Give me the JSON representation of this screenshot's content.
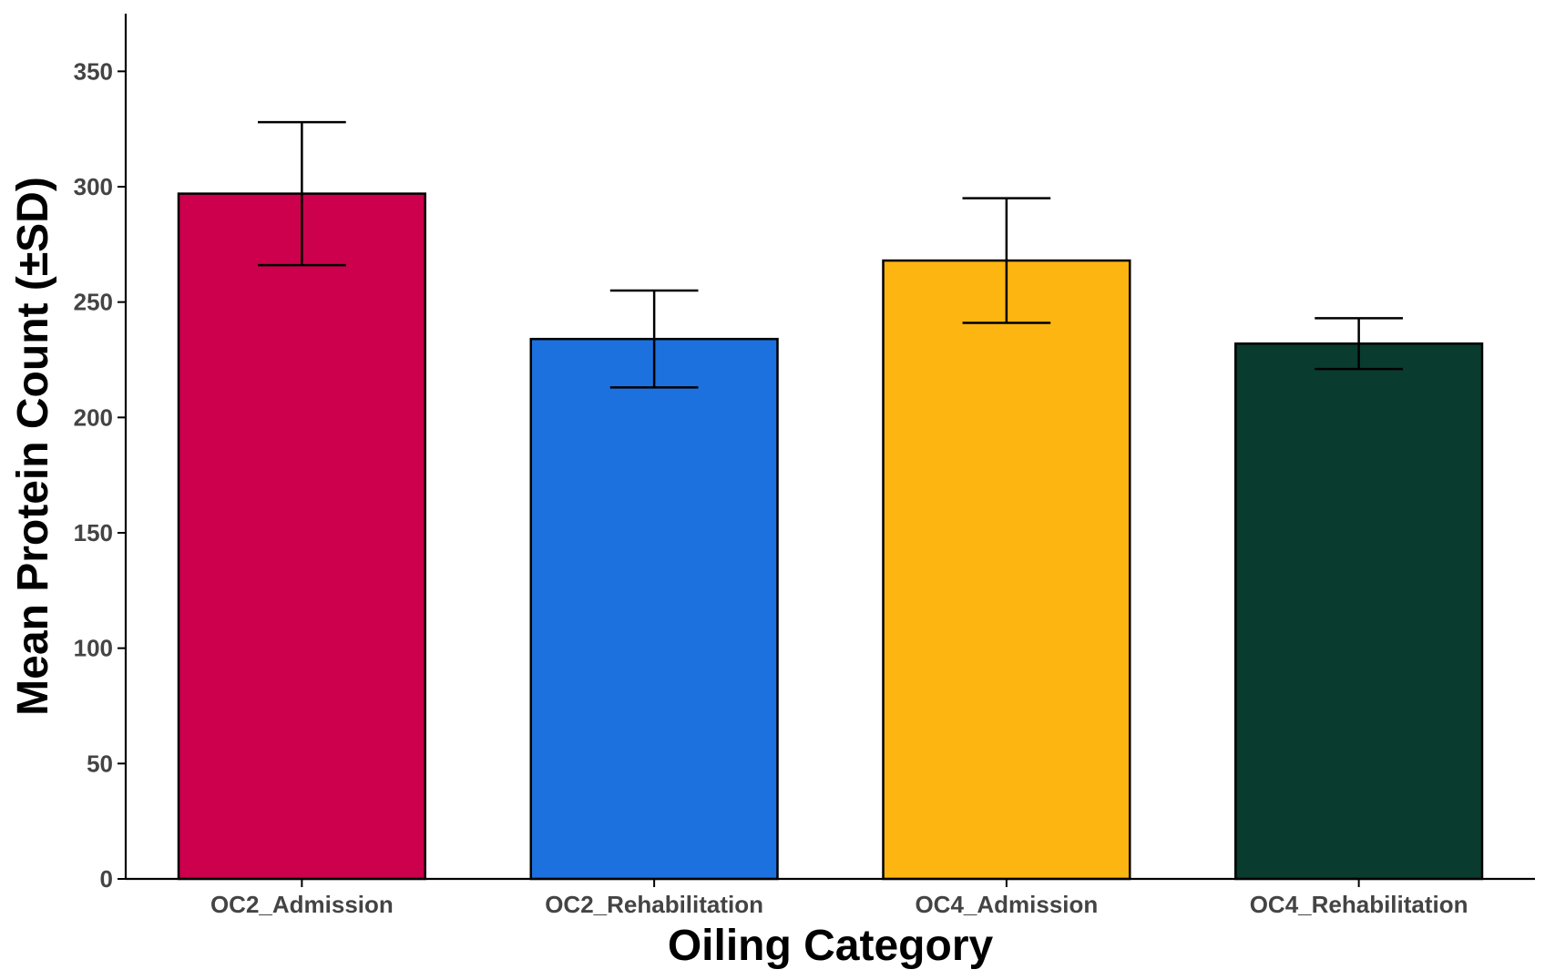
{
  "chart_data": {
    "type": "bar",
    "title": "",
    "xlabel": "Oiling Category",
    "ylabel": "Mean Protein Count (±SD)",
    "categories": [
      "OC2_Admission",
      "OC2_Rehabilitation",
      "OC4_Admission",
      "OC4_Rehabilitation"
    ],
    "values": [
      297,
      234,
      268,
      232
    ],
    "error": [
      31,
      21,
      27,
      11
    ],
    "colors": [
      "#CC004C",
      "#1C71DF",
      "#FDB512",
      "#093B2F"
    ],
    "ylim": [
      0,
      375
    ],
    "yticks": [
      "0",
      "50",
      "100",
      "150",
      "200",
      "250",
      "300",
      "350"
    ],
    "grid": false,
    "legend": "none"
  }
}
